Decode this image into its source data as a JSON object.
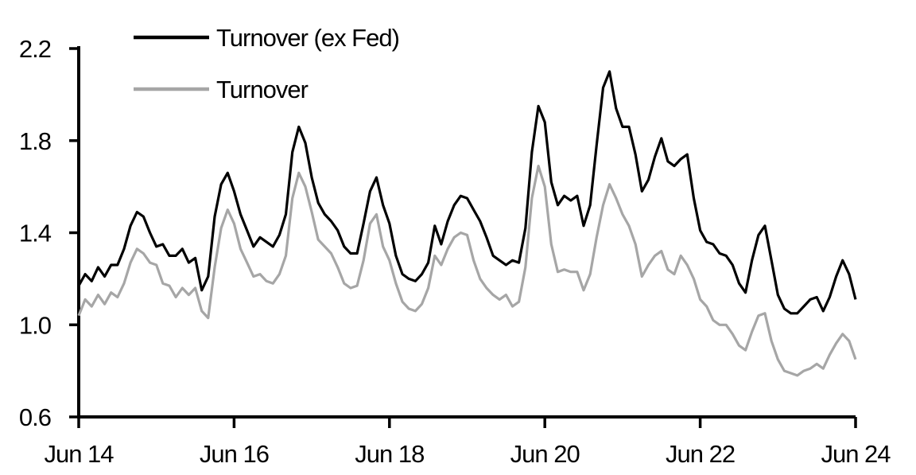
{
  "chart_data": {
    "type": "line",
    "title": "",
    "xlabel": "",
    "ylabel": "",
    "grid": false,
    "background": "#ffffff",
    "legend_position": "top-left-inside",
    "x_unit": "months since Jun 2014 (monthly estimates read from daily series)",
    "x_tick_labels": [
      "Jun 14",
      "Jun 16",
      "Jun 18",
      "Jun 20",
      "Jun 22",
      "Jun 24"
    ],
    "x_tick_months": [
      0,
      24,
      48,
      72,
      96,
      120
    ],
    "y_tick_labels": [
      "2.2",
      "1.8",
      "1.4",
      "1.0",
      "0.6"
    ],
    "y_ticks": [
      2.2,
      1.8,
      1.4,
      1.0,
      0.6
    ],
    "ylim": [
      0.6,
      2.2
    ],
    "axis_color": "#000000",
    "text_color": "#000000",
    "series": [
      {
        "name": "Turnover",
        "color": "#a6a6a6",
        "values": [
          1.04,
          1.11,
          1.08,
          1.13,
          1.09,
          1.14,
          1.12,
          1.18,
          1.27,
          1.33,
          1.31,
          1.27,
          1.26,
          1.18,
          1.17,
          1.12,
          1.16,
          1.13,
          1.16,
          1.06,
          1.03,
          1.25,
          1.42,
          1.5,
          1.44,
          1.33,
          1.27,
          1.21,
          1.22,
          1.19,
          1.18,
          1.22,
          1.3,
          1.55,
          1.66,
          1.6,
          1.49,
          1.37,
          1.34,
          1.31,
          1.25,
          1.18,
          1.16,
          1.17,
          1.28,
          1.44,
          1.48,
          1.34,
          1.28,
          1.18,
          1.1,
          1.07,
          1.06,
          1.09,
          1.16,
          1.3,
          1.26,
          1.33,
          1.38,
          1.4,
          1.39,
          1.28,
          1.2,
          1.16,
          1.13,
          1.11,
          1.13,
          1.08,
          1.1,
          1.25,
          1.55,
          1.69,
          1.6,
          1.35,
          1.23,
          1.24,
          1.23,
          1.23,
          1.15,
          1.22,
          1.38,
          1.52,
          1.61,
          1.55,
          1.48,
          1.43,
          1.35,
          1.21,
          1.26,
          1.3,
          1.32,
          1.24,
          1.22,
          1.3,
          1.26,
          1.2,
          1.11,
          1.08,
          1.02,
          1.0,
          1.0,
          0.96,
          0.91,
          0.89,
          0.97,
          1.04,
          1.05,
          0.93,
          0.85,
          0.8,
          0.79,
          0.78,
          0.8,
          0.81,
          0.83,
          0.81,
          0.87,
          0.92,
          0.96,
          0.93,
          0.85
        ]
      },
      {
        "name": "Turnover (ex Fed)",
        "color": "#000000",
        "values": [
          1.17,
          1.22,
          1.19,
          1.25,
          1.21,
          1.26,
          1.26,
          1.33,
          1.43,
          1.49,
          1.47,
          1.4,
          1.34,
          1.35,
          1.3,
          1.3,
          1.33,
          1.27,
          1.29,
          1.15,
          1.21,
          1.47,
          1.61,
          1.66,
          1.58,
          1.48,
          1.41,
          1.34,
          1.38,
          1.36,
          1.34,
          1.39,
          1.48,
          1.75,
          1.86,
          1.79,
          1.64,
          1.53,
          1.48,
          1.45,
          1.41,
          1.34,
          1.31,
          1.31,
          1.44,
          1.58,
          1.64,
          1.52,
          1.44,
          1.3,
          1.22,
          1.2,
          1.19,
          1.22,
          1.27,
          1.43,
          1.35,
          1.45,
          1.52,
          1.56,
          1.55,
          1.5,
          1.45,
          1.38,
          1.3,
          1.28,
          1.26,
          1.28,
          1.27,
          1.42,
          1.75,
          1.95,
          1.88,
          1.62,
          1.52,
          1.56,
          1.54,
          1.56,
          1.43,
          1.52,
          1.78,
          2.03,
          2.1,
          1.94,
          1.86,
          1.86,
          1.74,
          1.58,
          1.63,
          1.73,
          1.81,
          1.71,
          1.69,
          1.72,
          1.74,
          1.55,
          1.41,
          1.36,
          1.35,
          1.31,
          1.3,
          1.26,
          1.18,
          1.14,
          1.28,
          1.39,
          1.43,
          1.28,
          1.13,
          1.07,
          1.05,
          1.05,
          1.08,
          1.11,
          1.12,
          1.06,
          1.12,
          1.21,
          1.28,
          1.22,
          1.11
        ]
      }
    ],
    "legend": [
      {
        "label": "Turnover (ex Fed)",
        "color": "#000000"
      },
      {
        "label": "Turnover",
        "color": "#a6a6a6"
      }
    ]
  }
}
